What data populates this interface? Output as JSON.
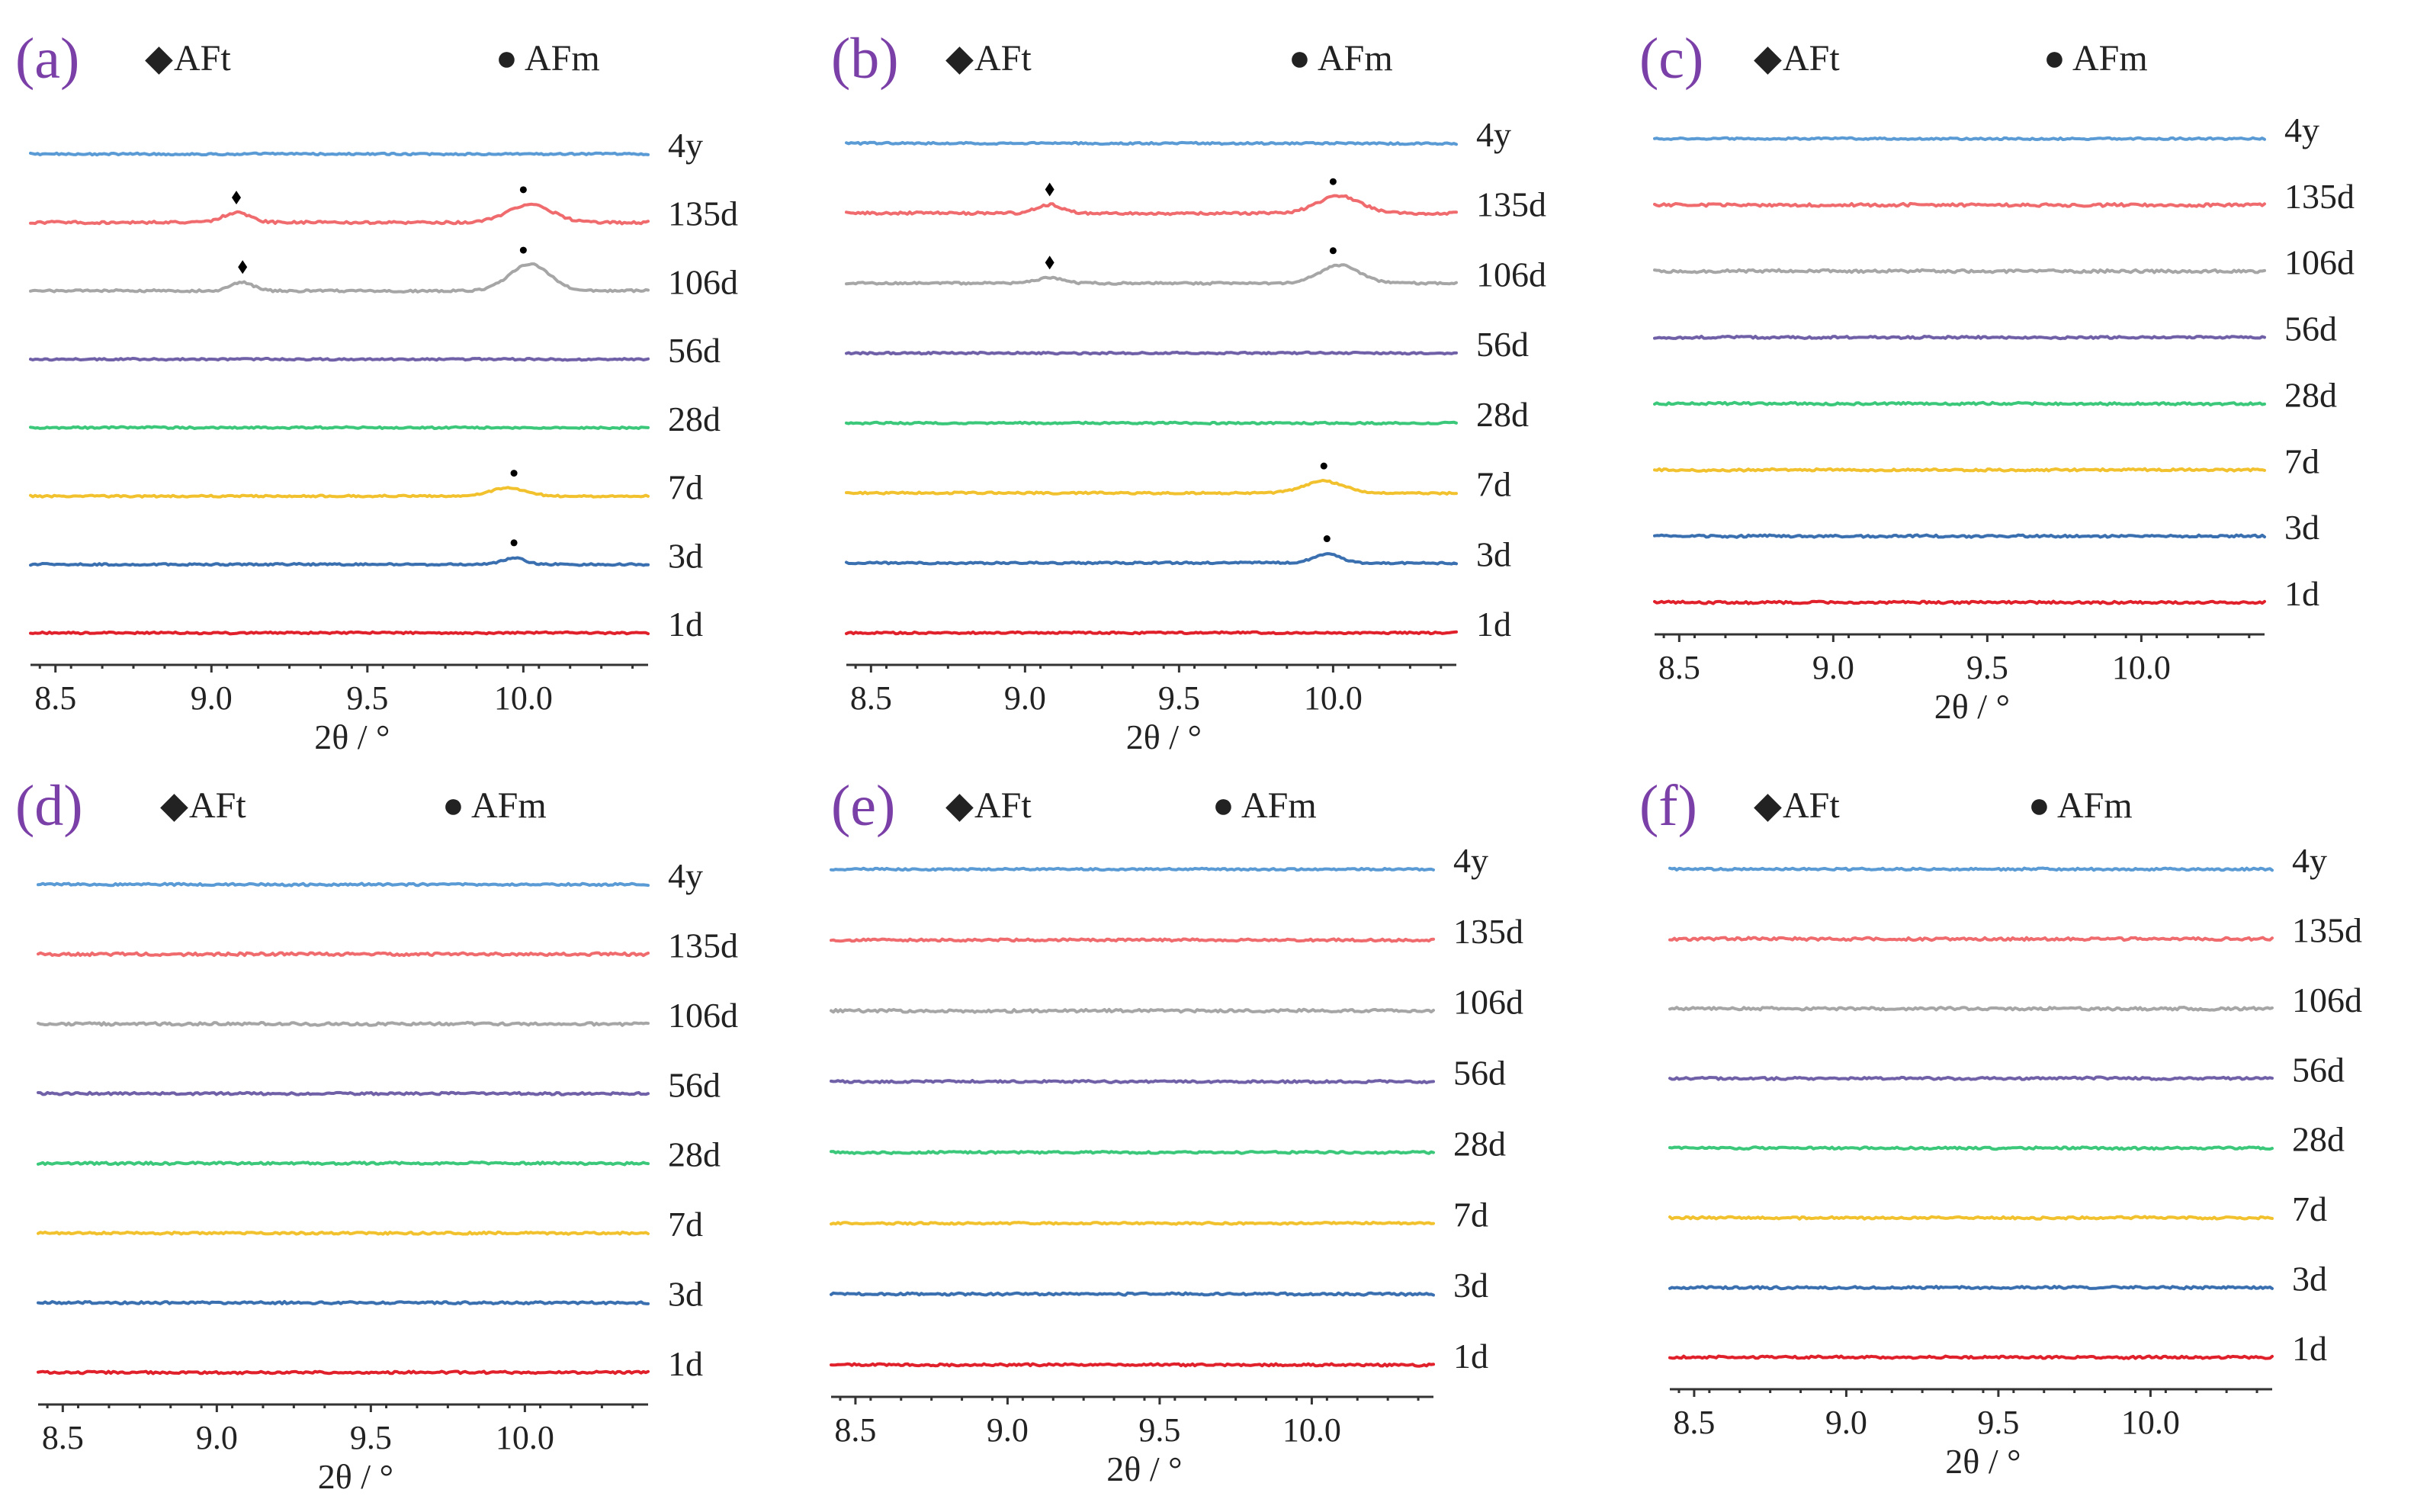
{
  "figure": {
    "axis_title": "2θ / °"
  },
  "legend": {
    "aft_symbol": "◆",
    "aft_label": "AFt",
    "afm_symbol": "●",
    "afm_label": "AFm"
  },
  "colors": {
    "4y": "#5a9bd5",
    "135d": "#f06b6e",
    "106d": "#a6a6a6",
    "56d": "#7060a8",
    "28d": "#3cc87a",
    "7d": "#f2c12e",
    "3d": "#3a6fb0",
    "1d": "#e0202a",
    "letter": "#7b3fa8",
    "marker": "#000000"
  },
  "chart_data": [
    {
      "panel": "(a)",
      "type": "line",
      "xlabel": "2θ / °",
      "ylabel": "",
      "xlim": [
        8.5,
        10.4
      ],
      "xticks": [
        8.5,
        9.0,
        9.5,
        10.0
      ],
      "tick_labels": [
        "8.5",
        "9.0",
        "9.5",
        "10.0"
      ],
      "series": [
        {
          "name": "4y",
          "noise": 1.0,
          "peaks": [],
          "markers": []
        },
        {
          "name": "135d",
          "noise": 1.4,
          "peaks": [
            {
              "x": 9.08,
              "h": 0.45,
              "w": 0.06
            },
            {
              "x": 10.02,
              "h": 0.85,
              "w": 0.1
            }
          ],
          "markers": [
            {
              "x": 9.08,
              "type": "AFt"
            },
            {
              "x": 10.0,
              "type": "AFm"
            }
          ]
        },
        {
          "name": "106d",
          "noise": 1.2,
          "peaks": [
            {
              "x": 9.1,
              "h": 0.4,
              "w": 0.05
            },
            {
              "x": 10.02,
              "h": 1.25,
              "w": 0.09
            }
          ],
          "markers": [
            {
              "x": 9.1,
              "type": "AFt"
            },
            {
              "x": 10.0,
              "type": "AFm"
            }
          ]
        },
        {
          "name": "56d",
          "noise": 1.0,
          "peaks": [],
          "markers": []
        },
        {
          "name": "28d",
          "noise": 1.0,
          "peaks": [],
          "markers": []
        },
        {
          "name": "7d",
          "noise": 1.0,
          "peaks": [
            {
              "x": 9.95,
              "h": 0.38,
              "w": 0.08
            }
          ],
          "markers": [
            {
              "x": 9.97,
              "type": "AFm"
            }
          ]
        },
        {
          "name": "3d",
          "noise": 1.0,
          "peaks": [
            {
              "x": 9.97,
              "h": 0.3,
              "w": 0.05
            }
          ],
          "markers": [
            {
              "x": 9.97,
              "type": "AFm"
            }
          ]
        },
        {
          "name": "1d",
          "noise": 1.0,
          "peaks": [],
          "markers": []
        }
      ]
    },
    {
      "panel": "(b)",
      "type": "line",
      "xlabel": "2θ / °",
      "ylabel": "",
      "xlim": [
        8.5,
        10.4
      ],
      "xticks": [
        8.5,
        9.0,
        9.5,
        10.0
      ],
      "tick_labels": [
        "8.5",
        "9.0",
        "9.5",
        "10.0"
      ],
      "series": [
        {
          "name": "4y",
          "noise": 1.0,
          "peaks": [],
          "markers": []
        },
        {
          "name": "135d",
          "noise": 1.4,
          "peaks": [
            {
              "x": 9.08,
              "h": 0.4,
              "w": 0.06
            },
            {
              "x": 10.02,
              "h": 0.8,
              "w": 0.1
            }
          ],
          "markers": [
            {
              "x": 9.08,
              "type": "AFt"
            },
            {
              "x": 10.0,
              "type": "AFm"
            }
          ]
        },
        {
          "name": "106d",
          "noise": 1.2,
          "peaks": [
            {
              "x": 9.08,
              "h": 0.25,
              "w": 0.06
            },
            {
              "x": 10.02,
              "h": 0.85,
              "w": 0.09
            }
          ],
          "markers": [
            {
              "x": 9.08,
              "type": "AFt"
            },
            {
              "x": 10.0,
              "type": "AFm"
            }
          ]
        },
        {
          "name": "56d",
          "noise": 1.0,
          "peaks": [],
          "markers": []
        },
        {
          "name": "28d",
          "noise": 1.0,
          "peaks": [],
          "markers": []
        },
        {
          "name": "7d",
          "noise": 1.0,
          "peaks": [
            {
              "x": 9.97,
              "h": 0.55,
              "w": 0.09
            }
          ],
          "markers": [
            {
              "x": 9.97,
              "type": "AFm"
            }
          ]
        },
        {
          "name": "3d",
          "noise": 1.0,
          "peaks": [
            {
              "x": 9.98,
              "h": 0.42,
              "w": 0.06
            }
          ],
          "markers": [
            {
              "x": 9.98,
              "type": "AFm"
            }
          ]
        },
        {
          "name": "1d",
          "noise": 1.0,
          "peaks": [],
          "markers": []
        }
      ]
    },
    {
      "panel": "(c)",
      "type": "line",
      "xlabel": "2θ / °",
      "ylabel": "",
      "xlim": [
        8.5,
        10.4
      ],
      "xticks": [
        8.5,
        9.0,
        9.5,
        10.0
      ],
      "tick_labels": [
        "8.5",
        "9.0",
        "9.5",
        "10.0"
      ],
      "series": [
        {
          "name": "4y",
          "noise": 1.0,
          "peaks": [],
          "markers": []
        },
        {
          "name": "135d",
          "noise": 1.6,
          "peaks": [],
          "markers": []
        },
        {
          "name": "106d",
          "noise": 1.6,
          "peaks": [],
          "markers": []
        },
        {
          "name": "56d",
          "noise": 1.3,
          "peaks": [],
          "markers": []
        },
        {
          "name": "28d",
          "noise": 1.3,
          "peaks": [],
          "markers": []
        },
        {
          "name": "7d",
          "noise": 1.2,
          "peaks": [],
          "markers": []
        },
        {
          "name": "3d",
          "noise": 1.3,
          "peaks": [],
          "markers": []
        },
        {
          "name": "1d",
          "noise": 1.3,
          "peaks": [],
          "markers": []
        }
      ]
    },
    {
      "panel": "(d)",
      "type": "line",
      "xlabel": "2θ / °",
      "ylabel": "",
      "xlim": [
        8.5,
        10.4
      ],
      "xticks": [
        8.5,
        9.0,
        9.5,
        10.0
      ],
      "tick_labels": [
        "8.5",
        "9.0",
        "9.5",
        "10.0"
      ],
      "series": [
        {
          "name": "4y",
          "noise": 1.2,
          "peaks": [],
          "markers": []
        },
        {
          "name": "135d",
          "noise": 1.6,
          "peaks": [],
          "markers": []
        },
        {
          "name": "106d",
          "noise": 1.6,
          "peaks": [],
          "markers": []
        },
        {
          "name": "56d",
          "noise": 1.3,
          "peaks": [],
          "markers": []
        },
        {
          "name": "28d",
          "noise": 1.3,
          "peaks": [],
          "markers": []
        },
        {
          "name": "7d",
          "noise": 1.2,
          "peaks": [],
          "markers": []
        },
        {
          "name": "3d",
          "noise": 1.3,
          "peaks": [],
          "markers": []
        },
        {
          "name": "1d",
          "noise": 1.3,
          "peaks": [],
          "markers": []
        }
      ]
    },
    {
      "panel": "(e)",
      "type": "line",
      "xlabel": "2θ / °",
      "ylabel": "",
      "xlim": [
        8.5,
        10.4
      ],
      "xticks": [
        8.5,
        9.0,
        9.5,
        10.0
      ],
      "tick_labels": [
        "8.5",
        "9.0",
        "9.5",
        "10.0"
      ],
      "series": [
        {
          "name": "4y",
          "noise": 1.0,
          "peaks": [],
          "markers": []
        },
        {
          "name": "135d",
          "noise": 1.3,
          "peaks": [],
          "markers": []
        },
        {
          "name": "106d",
          "noise": 1.6,
          "peaks": [],
          "markers": []
        },
        {
          "name": "56d",
          "noise": 1.2,
          "peaks": [],
          "markers": []
        },
        {
          "name": "28d",
          "noise": 1.2,
          "peaks": [],
          "markers": []
        },
        {
          "name": "7d",
          "noise": 1.1,
          "peaks": [],
          "markers": []
        },
        {
          "name": "3d",
          "noise": 1.3,
          "peaks": [],
          "markers": []
        },
        {
          "name": "1d",
          "noise": 1.3,
          "peaks": [],
          "markers": []
        }
      ]
    },
    {
      "panel": "(f)",
      "type": "line",
      "xlabel": "2θ / °",
      "ylabel": "",
      "xlim": [
        8.5,
        10.4
      ],
      "xticks": [
        8.5,
        9.0,
        9.5,
        10.0
      ],
      "tick_labels": [
        "8.5",
        "9.0",
        "9.5",
        "10.0"
      ],
      "series": [
        {
          "name": "4y",
          "noise": 1.2,
          "peaks": [],
          "markers": []
        },
        {
          "name": "135d",
          "noise": 1.6,
          "peaks": [],
          "markers": []
        },
        {
          "name": "106d",
          "noise": 1.6,
          "peaks": [],
          "markers": []
        },
        {
          "name": "56d",
          "noise": 1.3,
          "peaks": [],
          "markers": []
        },
        {
          "name": "28d",
          "noise": 1.3,
          "peaks": [],
          "markers": []
        },
        {
          "name": "7d",
          "noise": 1.3,
          "peaks": [],
          "markers": []
        },
        {
          "name": "3d",
          "noise": 1.3,
          "peaks": [],
          "markers": []
        },
        {
          "name": "1d",
          "noise": 1.3,
          "peaks": [],
          "markers": []
        }
      ]
    }
  ]
}
